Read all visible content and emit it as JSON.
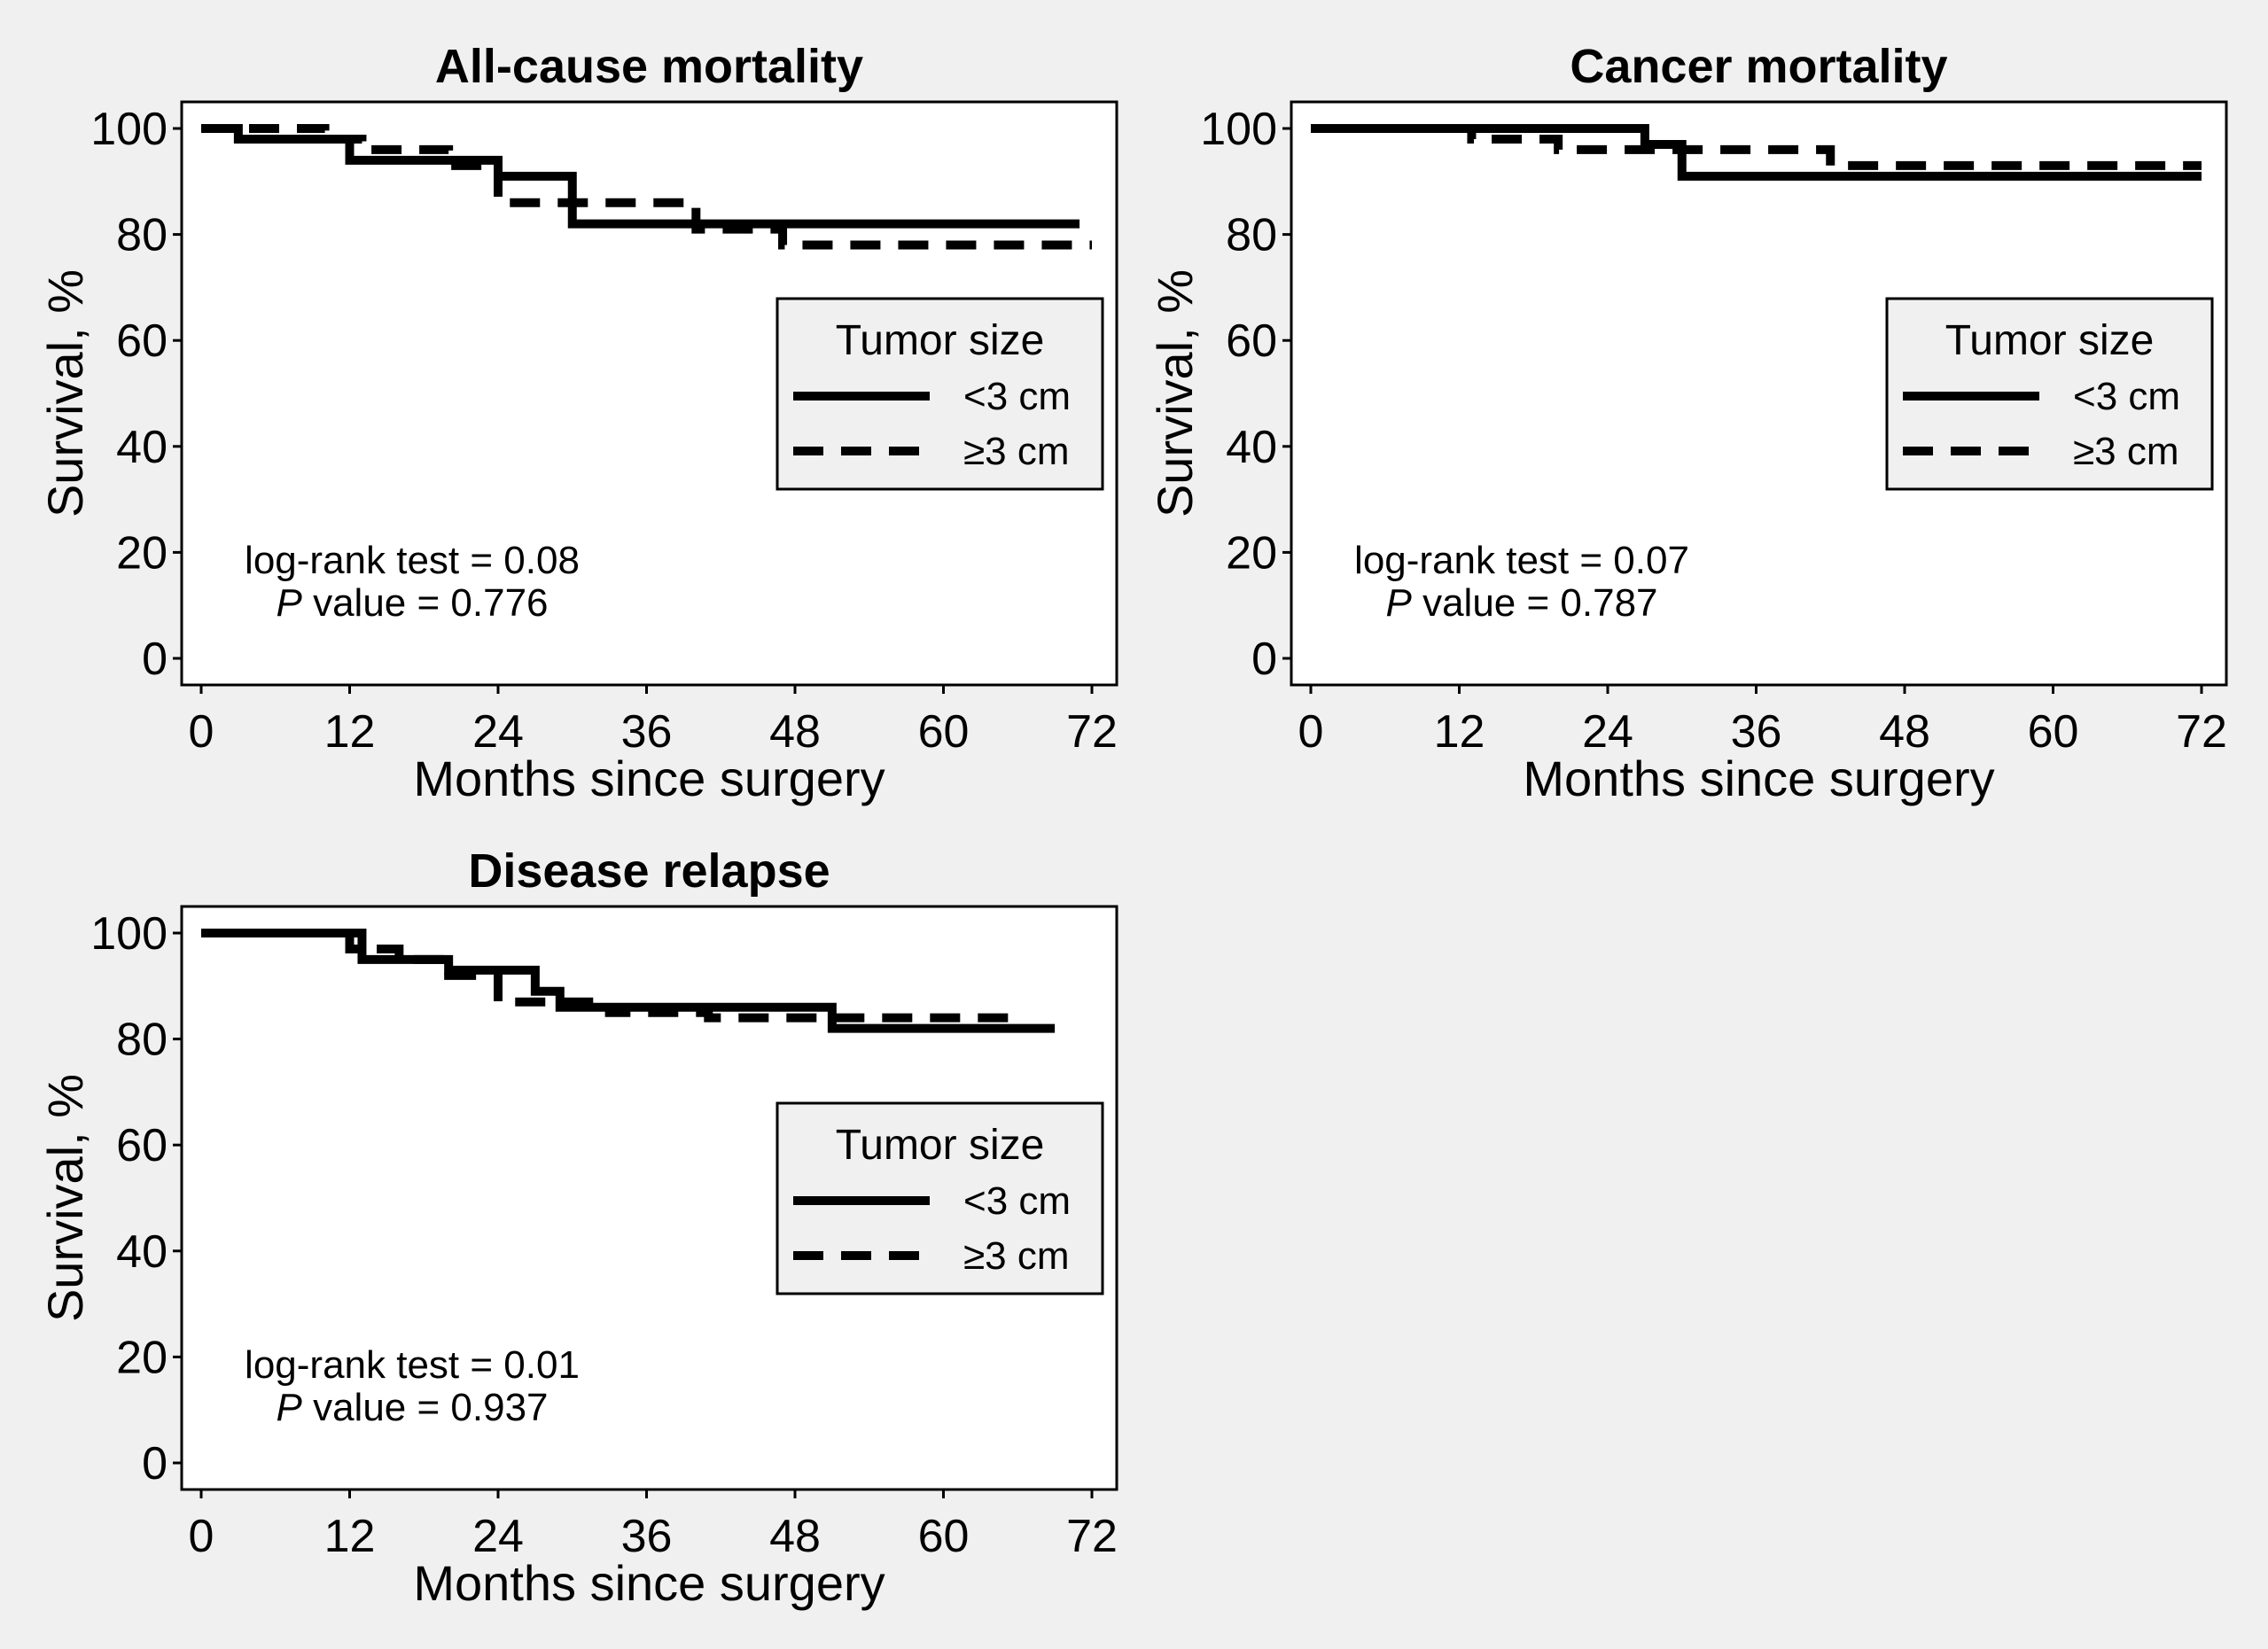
{
  "figure": {
    "background": "#f0f0f0",
    "panel_background": "#ffffff",
    "line_color": "#000000"
  },
  "chart_data": [
    {
      "id": "all-cause",
      "type": "line",
      "title": "All-cause mortality",
      "xlabel": "Months since surgery",
      "ylabel": "Survival, %",
      "xlim": [
        0,
        72
      ],
      "ylim": [
        0,
        100
      ],
      "xticks": [
        0,
        12,
        24,
        36,
        48,
        60,
        72
      ],
      "yticks": [
        0,
        20,
        40,
        60,
        80,
        100
      ],
      "grid": false,
      "legend": {
        "title": "Tumor size",
        "position": "right",
        "entries": [
          "<3 cm",
          "≥3 cm"
        ]
      },
      "annotation": {
        "line1": "log-rank test = 0.08",
        "p_label": "P",
        "p_text": " value = 0.776"
      },
      "series": [
        {
          "name": "<3 cm",
          "style": "solid",
          "x": [
            0,
            3,
            12,
            24,
            30,
            71
          ],
          "y": [
            100,
            98,
            94,
            91,
            82,
            82
          ]
        },
        {
          "name": "≥3 cm",
          "style": "dashed",
          "x": [
            0,
            10,
            13,
            20,
            24,
            27,
            33,
            40,
            47,
            72
          ],
          "y": [
            100,
            98,
            96,
            93,
            86,
            86,
            86,
            81,
            78,
            78
          ]
        }
      ]
    },
    {
      "id": "cancer",
      "type": "line",
      "title": "Cancer mortality",
      "xlabel": "Months since surgery",
      "ylabel": "Survival, %",
      "xlim": [
        0,
        72
      ],
      "ylim": [
        0,
        100
      ],
      "xticks": [
        0,
        12,
        24,
        36,
        48,
        60,
        72
      ],
      "yticks": [
        0,
        20,
        40,
        60,
        80,
        100
      ],
      "grid": false,
      "legend": {
        "title": "Tumor size",
        "position": "right",
        "entries": [
          "<3 cm",
          "≥3 cm"
        ]
      },
      "annotation": {
        "line1": "log-rank test = 0.07",
        "p_label": "P",
        "p_text": " value = 0.787"
      },
      "series": [
        {
          "name": "<3 cm",
          "style": "solid",
          "x": [
            0,
            27,
            30,
            72
          ],
          "y": [
            100,
            97,
            91,
            91
          ]
        },
        {
          "name": "≥3 cm",
          "style": "dashed",
          "x": [
            0,
            13,
            20,
            24,
            42,
            72
          ],
          "y": [
            100,
            98,
            96,
            96,
            93,
            93
          ]
        }
      ]
    },
    {
      "id": "relapse",
      "type": "line",
      "title": "Disease relapse",
      "xlabel": "Months since surgery",
      "ylabel": "Survival, %",
      "xlim": [
        0,
        72
      ],
      "ylim": [
        0,
        100
      ],
      "xticks": [
        0,
        12,
        24,
        36,
        48,
        60,
        72
      ],
      "yticks": [
        0,
        20,
        40,
        60,
        80,
        100
      ],
      "grid": false,
      "legend": {
        "title": "Tumor size",
        "position": "right",
        "entries": [
          "<3 cm",
          "≥3 cm"
        ]
      },
      "annotation": {
        "line1": "log-rank test = 0.01",
        "p_label": "P",
        "p_text": " value = 0.937"
      },
      "series": [
        {
          "name": "<3 cm",
          "style": "solid",
          "x": [
            0,
            13,
            20,
            27,
            29,
            51,
            69
          ],
          "y": [
            100,
            95,
            93,
            89,
            86,
            82,
            82
          ]
        },
        {
          "name": "≥3 cm",
          "style": "dashed",
          "x": [
            0,
            12,
            16,
            20,
            24,
            28,
            33,
            41,
            66
          ],
          "y": [
            100,
            97,
            95,
            92,
            87,
            87,
            85,
            84,
            84
          ]
        }
      ]
    }
  ]
}
